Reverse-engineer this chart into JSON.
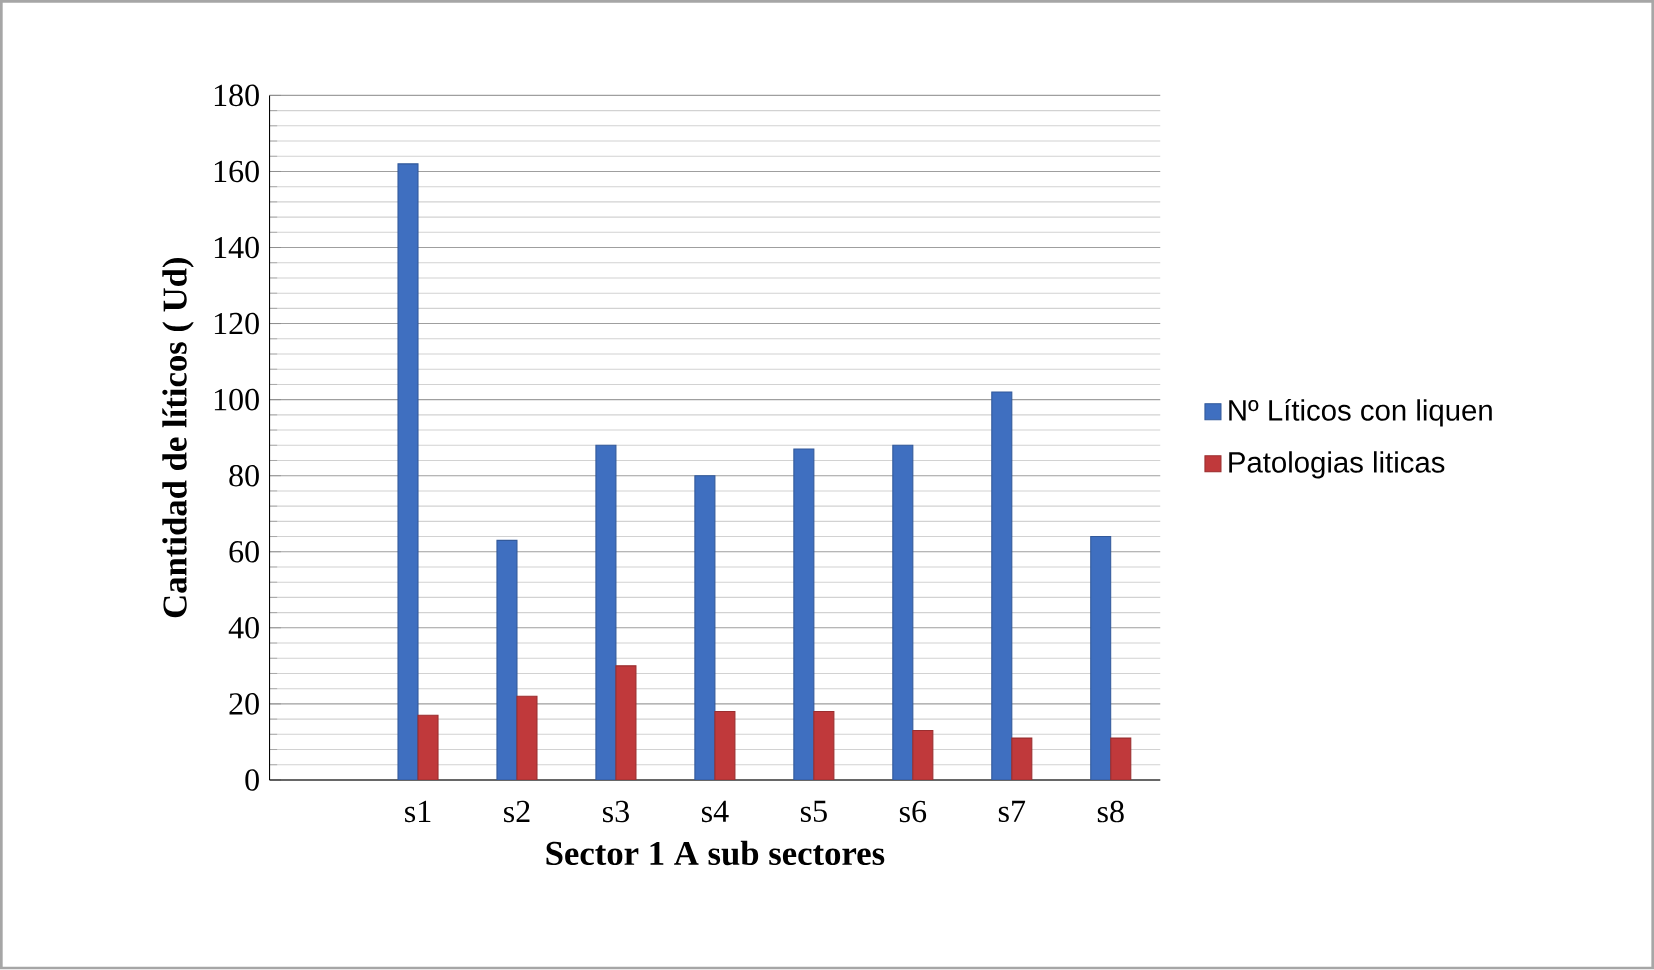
{
  "chart_data": {
    "type": "bar",
    "xlabel": "Sector 1 A sub sectores",
    "ylabel": "Cantidad de líticos ( Ud)",
    "categories": [
      null,
      "s1",
      "s2",
      "s3",
      "s4",
      "s5",
      "s6",
      "s7",
      "s8"
    ],
    "series": [
      {
        "name": "Nº Líticos con liquen",
        "color": "#3f6fc0",
        "values": [
          null,
          162,
          63,
          88,
          80,
          87,
          88,
          102,
          64
        ]
      },
      {
        "name": "Patologias liticas",
        "color": "#c0393b",
        "values": [
          null,
          17,
          22,
          30,
          18,
          18,
          13,
          11,
          11
        ]
      }
    ],
    "ylim": [
      0,
      180
    ],
    "yticks": [
      0,
      20,
      40,
      60,
      80,
      100,
      120,
      140,
      160,
      180
    ],
    "grid": true,
    "legend": "right"
  }
}
